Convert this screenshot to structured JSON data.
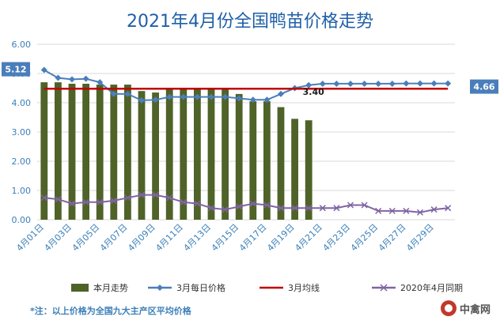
{
  "chart_data": {
    "type": "bar",
    "title": "2021年4月份全国鸭苗价格走势",
    "categories": [
      "4月01日",
      "4月02日",
      "4月03日",
      "4月04日",
      "4月05日",
      "4月06日",
      "4月07日",
      "4月08日",
      "4月09日",
      "4月10日",
      "4月11日",
      "4月12日",
      "4月13日",
      "4月14日",
      "4月15日",
      "4月16日",
      "4月17日",
      "4月18日",
      "4月19日",
      "4月20日",
      "4月21日",
      "4月22日",
      "4月23日",
      "4月24日",
      "4月25日",
      "4月26日",
      "4月27日",
      "4月28日",
      "4月29日",
      "4月30日"
    ],
    "x_tick_labels": [
      "4月01日",
      "4月03日",
      "4月05日",
      "4月07日",
      "4月09日",
      "4月11日",
      "4月13日",
      "4月15日",
      "4月17日",
      "4月19日",
      "4月21日",
      "4月23日",
      "4月25日",
      "4月27日",
      "4月29日"
    ],
    "ylim": [
      0,
      6
    ],
    "y_ticks": [
      "0.00",
      "1.00",
      "2.00",
      "3.00",
      "4.00",
      "5.00",
      "6.00"
    ],
    "grid": true,
    "legend_position": "bottom",
    "series": [
      {
        "name": "本月走势",
        "type": "bar",
        "color": "#4f6228",
        "values": [
          4.7,
          4.7,
          4.65,
          4.65,
          4.62,
          4.62,
          4.62,
          4.4,
          4.35,
          4.45,
          4.5,
          4.5,
          4.5,
          4.45,
          4.3,
          4.05,
          4.05,
          3.85,
          3.45,
          3.4,
          null,
          null,
          null,
          null,
          null,
          null,
          null,
          null,
          null,
          null
        ]
      },
      {
        "name": "3月每日价格",
        "type": "line",
        "color": "#4a7ebb",
        "marker": "diamond",
        "values": [
          5.12,
          4.85,
          4.8,
          4.82,
          4.7,
          4.3,
          4.3,
          4.08,
          4.1,
          4.2,
          4.2,
          4.2,
          4.2,
          4.2,
          4.15,
          4.1,
          4.1,
          4.3,
          4.5,
          4.6,
          4.65,
          4.65,
          4.65,
          4.65,
          4.65,
          4.65,
          4.66,
          4.66,
          4.66,
          4.66
        ]
      },
      {
        "name": "3月均线",
        "type": "line",
        "color": "#c00000",
        "values": [
          4.48,
          4.48,
          4.48,
          4.48,
          4.48,
          4.48,
          4.48,
          4.48,
          4.48,
          4.48,
          4.48,
          4.48,
          4.48,
          4.48,
          4.48,
          4.48,
          4.48,
          4.48,
          4.48,
          4.48,
          4.48,
          4.48,
          4.48,
          4.48,
          4.48,
          4.48,
          4.48,
          4.48,
          4.48,
          4.48
        ]
      },
      {
        "name": "2020年4月同期",
        "type": "line",
        "color": "#8064a2",
        "marker": "x",
        "values": [
          0.75,
          0.7,
          0.55,
          0.6,
          0.6,
          0.65,
          0.75,
          0.85,
          0.85,
          0.75,
          0.6,
          0.55,
          0.4,
          0.35,
          0.45,
          0.55,
          0.5,
          0.4,
          0.4,
          0.4,
          0.4,
          0.4,
          0.5,
          0.5,
          0.3,
          0.3,
          0.3,
          0.25,
          0.35,
          0.4
        ]
      }
    ],
    "annotations": [
      {
        "text": "5.12",
        "series": "3月每日价格",
        "index": 0,
        "style": "box"
      },
      {
        "text": "4.66",
        "series": "3月每日价格",
        "index": 29,
        "style": "box"
      },
      {
        "text": "3.40",
        "series": "本月走势",
        "index": 19,
        "style": "plain"
      }
    ]
  },
  "footnote": "*注：以上价格为全国九大主产区平均价格",
  "logo": {
    "text": "中禽网"
  },
  "colors": {
    "title": "#1f5fa8",
    "axis_text": "#3b7fb8",
    "grid": "#d9d9d9",
    "box_label_bg": "#4a7ebb"
  }
}
